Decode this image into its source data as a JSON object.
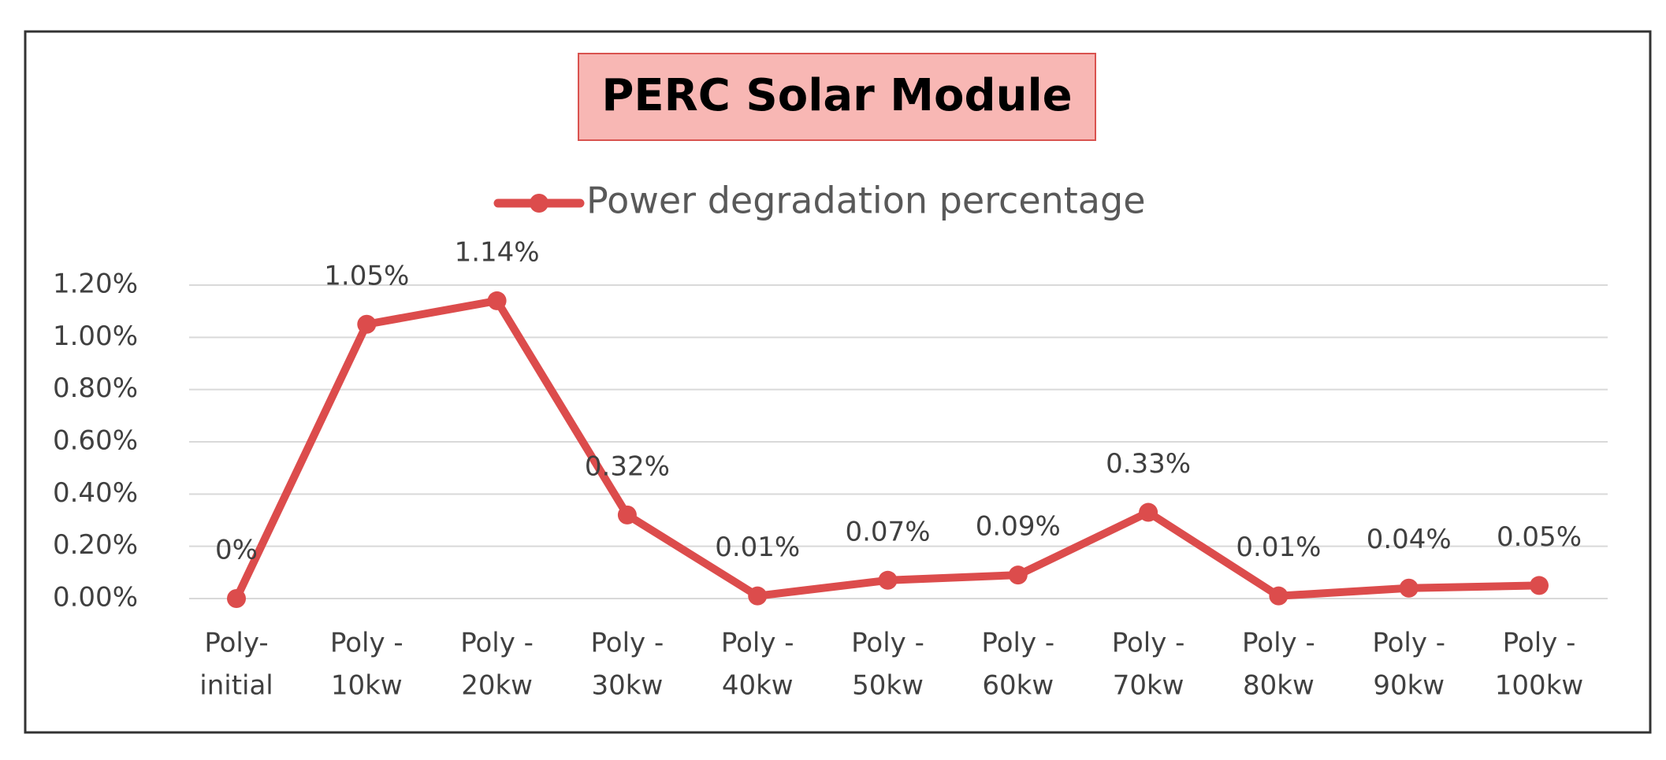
{
  "colors": {
    "series": "#DC4C4C",
    "title_box_fill": "#F8B7B4",
    "title_box_stroke": "#D9534F",
    "grid": "#D9D9D9",
    "frame": "#333333",
    "text": "#404040",
    "legend_text": "#595959",
    "title_text": "#000000"
  },
  "chart_data": {
    "type": "line",
    "title": "PERC Solar Module",
    "xlabel": "",
    "ylabel": "",
    "legend_position": "top",
    "grid": true,
    "categories": [
      {
        "line1": "Poly-",
        "line2": "initial"
      },
      {
        "line1": "Poly -",
        "line2": "10kw"
      },
      {
        "line1": "Poly -",
        "line2": "20kw"
      },
      {
        "line1": "Poly -",
        "line2": "30kw"
      },
      {
        "line1": "Poly -",
        "line2": "40kw"
      },
      {
        "line1": "Poly -",
        "line2": "50kw"
      },
      {
        "line1": "Poly -",
        "line2": "60kw"
      },
      {
        "line1": "Poly -",
        "line2": "70kw"
      },
      {
        "line1": "Poly -",
        "line2": "80kw"
      },
      {
        "line1": "Poly -",
        "line2": "90kw"
      },
      {
        "line1": "Poly -",
        "line2": "100kw"
      }
    ],
    "series": [
      {
        "name": "Power degradation percentage",
        "values": [
          0.0,
          1.05,
          1.14,
          0.32,
          0.01,
          0.07,
          0.09,
          0.33,
          0.01,
          0.04,
          0.05
        ],
        "labels": [
          "0%",
          "1.05%",
          "1.14%",
          "0.32%",
          "0.01%",
          "0.07%",
          "0.09%",
          "0.33%",
          "0.01%",
          "0.04%",
          "0.05%"
        ]
      }
    ],
    "ylim": [
      0,
      1.2
    ],
    "yticks": [
      0,
      0.2,
      0.4,
      0.6,
      0.8,
      1.0,
      1.2
    ],
    "ytick_labels": [
      "0.00%",
      "0.20%",
      "0.40%",
      "0.60%",
      "0.80%",
      "1.00%",
      "1.20%"
    ]
  }
}
